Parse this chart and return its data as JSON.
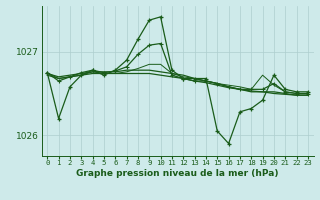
{
  "title": "Graphe pression niveau de la mer (hPa)",
  "bg_color": "#ceeaea",
  "grid_color": "#aecece",
  "line_color": "#1a5c1a",
  "xlim": [
    -0.5,
    23.5
  ],
  "ylim": [
    1025.75,
    1027.55
  ],
  "yticks": [
    1026,
    1027
  ],
  "ytick_labels": [
    "1026",
    "1027"
  ],
  "xtick_labels": [
    "0",
    "1",
    "2",
    "3",
    "4",
    "5",
    "6",
    "7",
    "8",
    "9",
    "10",
    "11",
    "12",
    "13",
    "14",
    "15",
    "16",
    "17",
    "18",
    "19",
    "20",
    "21",
    "22",
    "23"
  ],
  "series_spike_x": [
    0,
    1,
    2,
    3,
    4,
    5,
    6,
    7,
    8,
    9,
    10,
    11,
    12,
    13,
    14,
    15,
    16,
    17,
    18,
    19,
    20,
    21,
    22,
    23
  ],
  "series_spike_y": [
    1026.75,
    1026.2,
    1026.58,
    1026.72,
    1026.78,
    1026.72,
    1026.78,
    1026.9,
    1027.15,
    1027.38,
    1027.42,
    1026.78,
    1026.68,
    1026.68,
    1026.68,
    1026.05,
    1025.9,
    1026.28,
    1026.32,
    1026.42,
    1026.72,
    1026.55,
    1026.52,
    1026.52
  ],
  "series_smooth1_x": [
    0,
    1,
    2,
    3,
    4,
    5,
    6,
    7,
    8,
    9,
    10,
    11,
    12,
    13,
    14,
    15,
    16,
    17,
    18,
    19,
    20,
    21,
    22,
    23
  ],
  "series_smooth1_y": [
    1026.72,
    1026.68,
    1026.7,
    1026.72,
    1026.74,
    1026.74,
    1026.74,
    1026.74,
    1026.74,
    1026.74,
    1026.72,
    1026.7,
    1026.68,
    1026.65,
    1026.63,
    1026.6,
    1026.57,
    1026.55,
    1026.53,
    1026.52,
    1026.5,
    1026.49,
    1026.48,
    1026.48
  ],
  "series_smooth2_x": [
    0,
    1,
    2,
    3,
    4,
    5,
    6,
    7,
    8,
    9,
    10,
    11,
    12,
    13,
    14,
    15,
    16,
    17,
    18,
    19,
    20,
    21,
    22,
    23
  ],
  "series_smooth2_y": [
    1026.74,
    1026.7,
    1026.72,
    1026.74,
    1026.76,
    1026.76,
    1026.76,
    1026.78,
    1026.78,
    1026.78,
    1026.76,
    1026.74,
    1026.72,
    1026.68,
    1026.65,
    1026.62,
    1026.58,
    1026.55,
    1026.52,
    1026.52,
    1026.52,
    1026.5,
    1026.48,
    1026.48
  ],
  "series_dotted_x": [
    0,
    1,
    2,
    3,
    4,
    5,
    6,
    7,
    8,
    9,
    10,
    11,
    12,
    13,
    14,
    15,
    16,
    17,
    18,
    19,
    20,
    21,
    22,
    23
  ],
  "series_dotted_y": [
    1026.75,
    1026.68,
    1026.7,
    1026.72,
    1026.76,
    1026.74,
    1026.74,
    1026.76,
    1026.8,
    1026.85,
    1026.85,
    1026.74,
    1026.7,
    1026.68,
    1026.65,
    1026.62,
    1026.6,
    1026.58,
    1026.55,
    1026.72,
    1026.6,
    1026.52,
    1026.5,
    1026.5
  ],
  "series_marker_x": [
    0,
    1,
    2,
    3,
    4,
    5,
    6,
    7,
    8,
    9,
    10,
    11,
    12,
    13,
    14,
    15,
    16,
    17,
    18,
    19,
    20,
    21,
    22,
    23
  ],
  "series_marker_y": [
    1026.75,
    1026.65,
    1026.7,
    1026.75,
    1026.78,
    1026.75,
    1026.77,
    1026.82,
    1026.97,
    1027.08,
    1027.1,
    1026.72,
    1026.68,
    1026.65,
    1026.65,
    1026.62,
    1026.58,
    1026.55,
    1026.55,
    1026.55,
    1026.62,
    1026.52,
    1026.5,
    1026.5
  ]
}
